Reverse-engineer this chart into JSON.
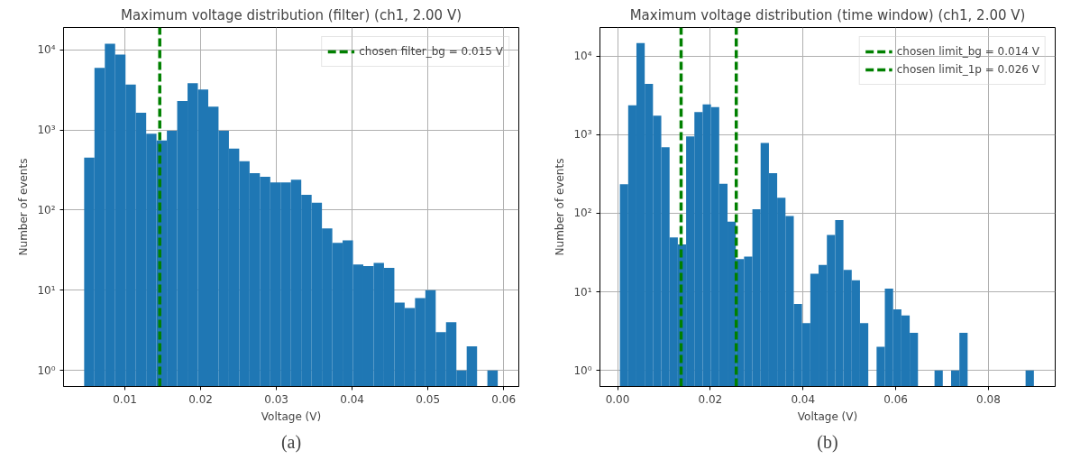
{
  "chart_data": [
    {
      "type": "histogram",
      "title": "Maximum voltage distribution (filter) (ch1, 2.00 V)",
      "xlabel": "Voltage (V)",
      "ylabel": "Number of events",
      "annotations": [
        "(a)"
      ],
      "bins": [
        0.00462,
        0.00598,
        0.00735,
        0.00871,
        0.01008,
        0.01144,
        0.01281,
        0.01417,
        0.01554,
        0.0169,
        0.01827,
        0.01963,
        0.021,
        0.02236,
        0.02373,
        0.02509,
        0.02646,
        0.02782,
        0.02919,
        0.03055,
        0.03192,
        0.03328,
        0.03465,
        0.03601,
        0.03738,
        0.03874,
        0.04011,
        0.04147,
        0.04284,
        0.0442,
        0.04557,
        0.04693,
        0.0483,
        0.04966,
        0.05103,
        0.05239,
        0.05376,
        0.05512,
        0.05649,
        0.05785,
        0.05922
      ],
      "values": [
        453,
        5970,
        11900,
        8750,
        3700,
        1645,
        900,
        740,
        980,
        2305,
        3830,
        3200,
        1950,
        980,
        587,
        407,
        290,
        261,
        221,
        221,
        239,
        155,
        124,
        59,
        39,
        42,
        21,
        20,
        22,
        19,
        7,
        6,
        8,
        10,
        3,
        4,
        1,
        2,
        null,
        1
      ],
      "color": "#1f77b4",
      "log": true,
      "grid": true,
      "legend": "top right",
      "xlim": [
        0.0019,
        0.062
      ],
      "xticks": [
        0.01,
        0.02,
        0.03,
        0.04,
        0.05,
        0.06
      ],
      "ylim": [
        0.63,
        19000
      ],
      "yticks": [
        {
          "value": 1,
          "label": "10⁰"
        },
        {
          "value": 10,
          "label": "10¹"
        },
        {
          "value": 100,
          "label": "10²"
        },
        {
          "value": 1000,
          "label": "10³"
        },
        {
          "value": 10000,
          "label": "10⁴"
        }
      ],
      "series": [
        {
          "type": "line",
          "name": "chosen filter_bg = 0.015 V",
          "color": "#008000",
          "line_style": "dashed",
          "x": [
            0.0146,
            0.0146
          ],
          "values": [
            0.63,
            19000
          ]
        }
      ]
    },
    {
      "type": "histogram",
      "title": "Maximum voltage distribution (time window) (ch1, 2.00 V)",
      "xlabel": "Voltage (V)",
      "ylabel": "Number of events",
      "annotations": [
        "(b)"
      ],
      "bins": [
        0.0005,
        0.00229,
        0.00407,
        0.00586,
        0.00764,
        0.00943,
        0.01122,
        0.013,
        0.01479,
        0.01657,
        0.01836,
        0.02015,
        0.02193,
        0.02372,
        0.0255,
        0.02729,
        0.02908,
        0.03086,
        0.03265,
        0.03443,
        0.03622,
        0.03801,
        0.03979,
        0.04158,
        0.04336,
        0.04515,
        0.04694,
        0.04872,
        0.05051,
        0.05229,
        0.05408,
        0.05587,
        0.05765,
        0.05944,
        0.06122,
        0.06301,
        0.0648,
        0.06658,
        0.06837,
        0.07015,
        0.07194,
        0.07373,
        0.07551,
        0.0773,
        0.07908,
        0.08087,
        0.08266,
        0.08444,
        0.08623,
        0.08801,
        0.0898
      ],
      "values": [
        234,
        2360,
        14600,
        4400,
        1735,
        690,
        49,
        40,
        947,
        1930,
        2420,
        2230,
        236,
        78,
        26,
        28,
        112,
        784,
        323,
        157,
        92,
        7,
        4,
        17,
        22,
        53,
        82,
        19,
        14,
        4,
        null,
        2,
        11,
        6,
        5,
        3,
        null,
        null,
        1,
        null,
        1,
        3,
        null,
        null,
        null,
        null,
        null,
        null,
        null,
        1
      ],
      "color": "#1f77b4",
      "log": true,
      "grid": true,
      "legend": "top right",
      "xlim": [
        -0.0038,
        0.0944
      ],
      "xticks": [
        {
          "value": 0,
          "label": "0.00"
        },
        {
          "value": 0.02,
          "label": "0.02"
        },
        {
          "value": 0.04,
          "label": "0.04"
        },
        {
          "value": 0.06,
          "label": "0.06"
        },
        {
          "value": 0.08,
          "label": "0.08"
        }
      ],
      "ylim": [
        0.625,
        23000
      ],
      "yticks": [
        {
          "value": 1,
          "label": "10⁰"
        },
        {
          "value": 10,
          "label": "10¹"
        },
        {
          "value": 100,
          "label": "10²"
        },
        {
          "value": 1000,
          "label": "10³"
        },
        {
          "value": 10000,
          "label": "10⁴"
        }
      ],
      "series": [
        {
          "type": "line",
          "name": "chosen limit_bg = 0.014 V",
          "color": "#008000",
          "line_style": "dashed",
          "x": [
            0.0137,
            0.0137
          ],
          "values": [
            0.625,
            23000
          ]
        },
        {
          "type": "line",
          "name": "chosen limit_1p = 0.026 V",
          "color": "#008000",
          "line_style": "dashed",
          "x": [
            0.0256,
            0.0256
          ],
          "values": [
            0.625,
            23000
          ]
        }
      ]
    }
  ]
}
